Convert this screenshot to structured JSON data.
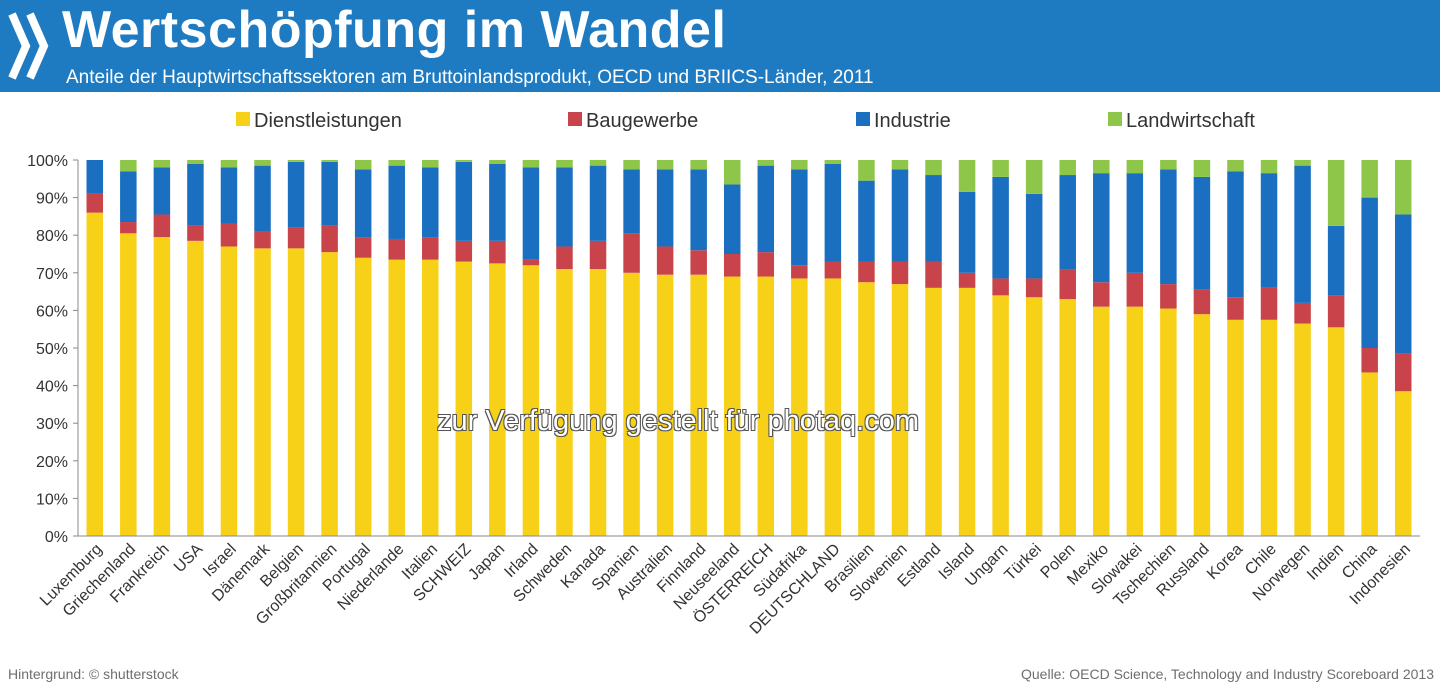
{
  "header": {
    "title": "Wertschöpfung im Wandel",
    "subtitle": "Anteile der Hauptwirtschaftssektoren am Bruttoinlandsprodukt, OECD und BRIICS-Länder, 2011",
    "logo_icon": "oecd-chevron-logo-icon",
    "color": "#1f7bc1"
  },
  "watermark": "zur Verfügung gestellt für photaq.com",
  "footer": {
    "left": "Hintergrund: © shutterstock",
    "right": "Quelle: OECD Science, Technology and Industry Scoreboard 2013"
  },
  "chart_data": {
    "type": "bar",
    "stacked": true,
    "legend_position": "top",
    "grid": false,
    "ylim": [
      0,
      100
    ],
    "yticks": [
      "0%",
      "10%",
      "20%",
      "30%",
      "40%",
      "50%",
      "60%",
      "70%",
      "80%",
      "90%",
      "100%"
    ],
    "categories": [
      "Luxemburg",
      "Griechenland",
      "Frankreich",
      "USA",
      "Israel",
      "Dänemark",
      "Belgien",
      "Großbritannien",
      "Portugal",
      "Niederlande",
      "Italien",
      "SCHWEIZ",
      "Japan",
      "Irland",
      "Schweden",
      "Kanada",
      "Spanien",
      "Australien",
      "Finnland",
      "Neuseeland",
      "ÖSTERREICH",
      "Südafrika",
      "DEUTSCHLAND",
      "Brasilien",
      "Slowenien",
      "Estland",
      "Island",
      "Ungarn",
      "Türkei",
      "Polen",
      "Mexiko",
      "Slowakei",
      "Tschechien",
      "Russland",
      "Korea",
      "Chile",
      "Norwegen",
      "Indien",
      "China",
      "Indonesien"
    ],
    "series": [
      {
        "name": "Dienstleistungen",
        "color": "#f7d117",
        "values": [
          86,
          80.5,
          79.5,
          78.5,
          77,
          76.5,
          76.5,
          75.5,
          74,
          73.5,
          73.5,
          73,
          72.5,
          72,
          71,
          71,
          70,
          69.5,
          69.5,
          69,
          69,
          68.5,
          68.5,
          67.5,
          67,
          66,
          66,
          64,
          63.5,
          63,
          61,
          61,
          60.5,
          59,
          57.5,
          57.5,
          56.5,
          55.5,
          43.5,
          38.5
        ]
      },
      {
        "name": "Baugewerbe",
        "color": "#c8444a",
        "values": [
          5,
          3,
          6,
          4,
          6,
          4.5,
          5.5,
          7,
          5.5,
          5.5,
          6,
          5.5,
          6,
          1.5,
          6,
          7.5,
          10.5,
          7.5,
          6.5,
          6,
          6.5,
          3.5,
          4.5,
          5.5,
          6,
          7,
          4,
          4.5,
          5,
          8,
          6.5,
          9,
          6.5,
          6.5,
          6,
          8.5,
          5.5,
          8.5,
          6.5,
          10
        ]
      },
      {
        "name": "Industrie",
        "color": "#1b6fc0",
        "values": [
          9,
          13.5,
          12.5,
          16.5,
          15,
          17.5,
          17.5,
          17,
          18,
          19.5,
          18.5,
          21,
          20.5,
          24.5,
          21,
          20,
          17,
          20.5,
          21.5,
          18.5,
          23,
          25.5,
          26,
          21.5,
          24.5,
          23,
          21.5,
          27,
          22.5,
          25,
          29,
          26.5,
          30.5,
          30,
          33.5,
          30.5,
          36.5,
          18.5,
          40,
          37
        ]
      },
      {
        "name": "Landwirtschaft",
        "color": "#8ec649",
        "values": [
          0,
          3,
          2,
          1,
          2,
          1.5,
          0.5,
          0.5,
          2.5,
          1.5,
          2,
          0.5,
          1,
          2,
          2,
          1.5,
          2.5,
          2.5,
          2.5,
          6.5,
          1.5,
          2.5,
          1,
          5.5,
          2.5,
          4,
          8.5,
          4.5,
          9,
          4,
          3.5,
          3.5,
          2.5,
          4.5,
          3,
          3.5,
          1.5,
          17.5,
          10,
          14.5
        ]
      }
    ]
  }
}
